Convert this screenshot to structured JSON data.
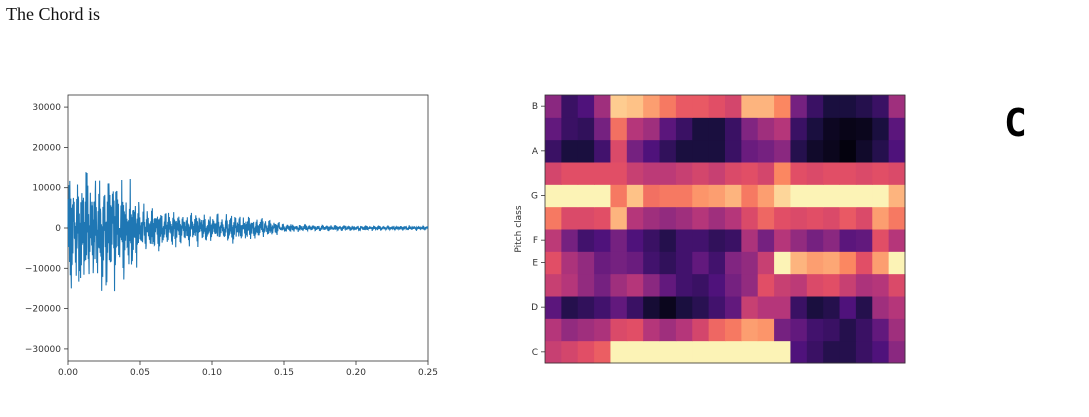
{
  "page": {
    "title": "The Chord is",
    "chord": "C"
  },
  "chart_data": [
    {
      "type": "line",
      "title": "",
      "xlabel": "",
      "ylabel": "",
      "xlim": [
        0,
        0.25
      ],
      "ylim": [
        -33000,
        33000
      ],
      "x_ticks": [
        "0.00",
        "0.05",
        "0.10",
        "0.15",
        "0.20",
        "0.25"
      ],
      "x_tick_values": [
        0,
        0.05,
        0.1,
        0.15,
        0.2,
        0.25
      ],
      "y_ticks": [
        "30000",
        "20000",
        "10000",
        "0",
        "−10000",
        "−20000",
        "−30000"
      ],
      "y_tick_values": [
        30000,
        20000,
        10000,
        0,
        -10000,
        -20000,
        -30000
      ],
      "series_color": "#1f77b4",
      "envelope": {
        "t": [
          0,
          0.003,
          0.01,
          0.02,
          0.03,
          0.04,
          0.045,
          0.05,
          0.055,
          0.07,
          0.09,
          0.11,
          0.13,
          0.14,
          0.15,
          0.17,
          0.2,
          0.25
        ],
        "max": [
          18000,
          18000,
          17000,
          16000,
          15000,
          14000,
          11000,
          7000,
          6000,
          5000,
          4500,
          4000,
          3500,
          2500,
          1200,
          900,
          700,
          600
        ],
        "min": [
          -20000,
          -19000,
          -18000,
          -17000,
          -16000,
          -15000,
          -12000,
          -8000,
          -6500,
          -5000,
          -4500,
          -4000,
          -3500,
          -2500,
          -1200,
          -900,
          -700,
          -600
        ]
      },
      "grid": false
    },
    {
      "type": "heatmap",
      "title": "",
      "ylabel": "Pitch class",
      "y_tick_labels": [
        "C",
        "D",
        "E",
        "F",
        "G",
        "A",
        "B"
      ],
      "y_tick_rows": [
        0,
        2,
        4,
        5,
        7,
        9,
        11
      ],
      "colormap": "magma",
      "grid": false,
      "rows_bottom_to_top": [
        [
          0.55,
          0.58,
          0.62,
          0.66,
          0.98,
          0.98,
          0.98,
          0.98,
          0.98,
          0.98,
          0.98,
          0.98,
          0.98,
          0.98,
          0.98,
          0.25,
          0.2,
          0.15,
          0.15,
          0.2,
          0.25,
          0.4
        ],
        [
          0.5,
          0.42,
          0.45,
          0.48,
          0.6,
          0.62,
          0.5,
          0.45,
          0.5,
          0.58,
          0.68,
          0.72,
          0.8,
          0.78,
          0.35,
          0.3,
          0.22,
          0.2,
          0.15,
          0.2,
          0.3,
          0.45
        ],
        [
          0.28,
          0.15,
          0.18,
          0.22,
          0.3,
          0.2,
          0.1,
          0.05,
          0.12,
          0.16,
          0.22,
          0.3,
          0.55,
          0.5,
          0.5,
          0.2,
          0.12,
          0.15,
          0.25,
          0.15,
          0.45,
          0.5
        ],
        [
          0.55,
          0.5,
          0.42,
          0.35,
          0.45,
          0.5,
          0.4,
          0.3,
          0.22,
          0.2,
          0.25,
          0.35,
          0.42,
          0.62,
          0.55,
          0.52,
          0.6,
          0.62,
          0.55,
          0.48,
          0.5,
          0.6
        ],
        [
          0.62,
          0.48,
          0.42,
          0.32,
          0.35,
          0.32,
          0.22,
          0.18,
          0.22,
          0.3,
          0.22,
          0.38,
          0.42,
          0.55,
          0.98,
          0.85,
          0.8,
          0.82,
          0.75,
          0.62,
          0.8,
          0.98
        ],
        [
          0.52,
          0.35,
          0.22,
          0.25,
          0.35,
          0.25,
          0.2,
          0.15,
          0.22,
          0.22,
          0.18,
          0.2,
          0.48,
          0.35,
          0.5,
          0.42,
          0.35,
          0.4,
          0.28,
          0.3,
          0.62,
          0.5
        ],
        [
          0.72,
          0.6,
          0.6,
          0.62,
          0.85,
          0.5,
          0.45,
          0.42,
          0.45,
          0.5,
          0.45,
          0.5,
          0.6,
          0.68,
          0.62,
          0.6,
          0.62,
          0.6,
          0.65,
          0.6,
          0.8,
          0.72
        ],
        [
          0.98,
          0.98,
          0.98,
          0.98,
          0.72,
          0.88,
          0.7,
          0.72,
          0.72,
          0.78,
          0.8,
          0.85,
          0.72,
          0.8,
          0.92,
          0.98,
          0.98,
          0.98,
          0.98,
          0.98,
          0.98,
          0.85
        ],
        [
          0.58,
          0.62,
          0.62,
          0.62,
          0.62,
          0.55,
          0.52,
          0.52,
          0.55,
          0.58,
          0.55,
          0.6,
          0.62,
          0.58,
          0.75,
          0.62,
          0.6,
          0.62,
          0.62,
          0.6,
          0.62,
          0.6
        ],
        [
          0.2,
          0.12,
          0.12,
          0.22,
          0.6,
          0.35,
          0.25,
          0.18,
          0.12,
          0.12,
          0.12,
          0.2,
          0.32,
          0.35,
          0.4,
          0.15,
          0.08,
          0.05,
          0.02,
          0.08,
          0.15,
          0.25
        ],
        [
          0.3,
          0.2,
          0.18,
          0.35,
          0.7,
          0.5,
          0.45,
          0.28,
          0.2,
          0.12,
          0.12,
          0.2,
          0.38,
          0.45,
          0.5,
          0.2,
          0.12,
          0.06,
          0.04,
          0.05,
          0.12,
          0.28
        ],
        [
          0.4,
          0.2,
          0.25,
          0.45,
          0.9,
          0.88,
          0.8,
          0.72,
          0.65,
          0.65,
          0.62,
          0.58,
          0.85,
          0.85,
          0.75,
          0.35,
          0.2,
          0.12,
          0.12,
          0.15,
          0.2,
          0.45
        ]
      ]
    }
  ]
}
